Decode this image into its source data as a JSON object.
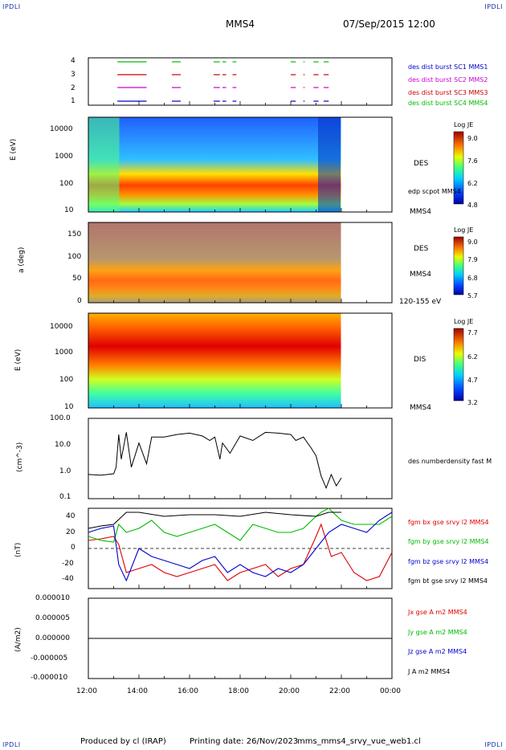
{
  "header": {
    "corner_tl": "IPDLI",
    "corner_tr": "IPDLI",
    "corner_bl": "IPDLI",
    "corner_br": "IPDLI",
    "spacecraft": "MMS4",
    "datetime": "07/Sep/2015 12:00"
  },
  "footer": {
    "produced_by": "Produced by cl (IRAP)",
    "printing_date": "Printing date: 26/Nov/2023",
    "script": "mms_mms4_srvy_vue_web1.cl"
  },
  "time_axis": {
    "ticks": [
      "12:00",
      "14:00",
      "16:00",
      "18:00",
      "20:00",
      "22:00",
      "00:00"
    ]
  },
  "panel1": {
    "yticks": [
      "1",
      "2",
      "3",
      "4"
    ],
    "legend": [
      {
        "text": "des dist burst SC1 MMS1",
        "color": "#0000cc"
      },
      {
        "text": "des dist burst SC2 MMS2",
        "color": "#cc00cc"
      },
      {
        "text": "des dist burst SC3 MMS3",
        "color": "#cc0000"
      },
      {
        "text": "des dist burst SC4 MMS4",
        "color": "#00bb00"
      }
    ],
    "intervals_hours": [
      [
        13.15,
        14.3
      ],
      [
        15.3,
        15.65
      ],
      [
        16.95,
        17.2
      ],
      [
        17.3,
        17.45
      ],
      [
        17.7,
        17.85
      ],
      [
        20.0,
        20.2
      ],
      [
        20.5,
        20.55
      ],
      [
        20.9,
        21.1
      ],
      [
        21.3,
        21.5
      ]
    ]
  },
  "panel2": {
    "ylabel": "E (eV)",
    "yticks": [
      "10",
      "100",
      "1000",
      "10000"
    ],
    "instrument": "DES",
    "overlay": "edp scpot MMS4",
    "sc": "MMS4",
    "colorbar": {
      "title": "Log JE",
      "ticks": [
        "9.0",
        "7.6",
        "6.2",
        "4.8"
      ]
    }
  },
  "panel3": {
    "ylabel": "a (deg)",
    "yticks": [
      "0",
      "50",
      "100",
      "150"
    ],
    "instrument": "DES",
    "sc": "MMS4",
    "energy_range": "120-155 eV",
    "colorbar": {
      "title": "Log JE",
      "ticks": [
        "9.0",
        "7.9",
        "6.8",
        "5.7"
      ]
    }
  },
  "panel4": {
    "ylabel": "E (eV)",
    "yticks": [
      "10",
      "100",
      "1000",
      "10000"
    ],
    "instrument": "DIS",
    "sc": "MMS4",
    "colorbar": {
      "title": "Log JE",
      "ticks": [
        "7.7",
        "6.2",
        "4.7",
        "3.2"
      ]
    }
  },
  "panel5": {
    "ylabel": "(cm^-3)",
    "yticks": [
      "0.1",
      "1.0",
      "10.0",
      "100.0"
    ],
    "legend": "des numberdensity fast M"
  },
  "panel6": {
    "ylabel": "(nT)",
    "yticks": [
      "-40",
      "-20",
      "0",
      "20",
      "40"
    ],
    "legend": [
      {
        "text": "fgm bx gse srvy l2 MMS4",
        "color": "#dd0000"
      },
      {
        "text": "fgm by gse srvy l2 MMS4",
        "color": "#00bb00"
      },
      {
        "text": "fgm bz gse srvy l2 MMS4",
        "color": "#0000cc"
      },
      {
        "text": "fgm bt gse srvy l2 MMS4",
        "color": "#000000"
      }
    ]
  },
  "panel7": {
    "ylabel": "(A/m2)",
    "yticks": [
      "-0.000010",
      "-0.000005",
      "0.000000",
      "0.000005",
      "0.000010"
    ],
    "legend": [
      {
        "text": "Jx gse A m2 MMS4",
        "color": "#dd0000"
      },
      {
        "text": "Jy gse A m2 MMS4",
        "color": "#00bb00"
      },
      {
        "text": "Jz gse A m2 MMS4",
        "color": "#0000cc"
      },
      {
        "text": "J A m2 MMS4",
        "color": "#000000"
      }
    ]
  },
  "chart_data": [
    {
      "type": "line",
      "title": "des numberdensity fast M",
      "ylabel": "(cm^-3)",
      "yscale": "log",
      "ylim": [
        0.1,
        100
      ],
      "x_hours": [
        12.0,
        12.5,
        13.0,
        13.1,
        13.2,
        13.3,
        13.5,
        13.7,
        14.0,
        14.3,
        14.5,
        15.0,
        15.5,
        16.0,
        16.5,
        16.8,
        17.0,
        17.2,
        17.3,
        17.6,
        18.0,
        18.5,
        19.0,
        19.5,
        20.0,
        20.2,
        20.5,
        20.8,
        21.0,
        21.2,
        21.4,
        21.6,
        21.8,
        22.0
      ],
      "values": [
        0.8,
        0.75,
        0.85,
        1.5,
        25,
        3,
        30,
        1.5,
        12,
        2,
        20,
        20,
        25,
        28,
        22,
        15,
        20,
        3,
        12,
        5,
        22,
        15,
        30,
        28,
        25,
        15,
        20,
        8,
        4,
        0.7,
        0.25,
        0.8,
        0.3,
        0.6
      ]
    },
    {
      "type": "line",
      "ylabel": "(nT)",
      "ylim": [
        -50,
        50
      ],
      "series": [
        {
          "name": "fgm bx gse srvy l2 MMS4",
          "x_hours": [
            12.0,
            12.5,
            13.0,
            13.2,
            13.5,
            14.0,
            14.5,
            15.0,
            15.5,
            16.0,
            16.5,
            17.0,
            17.5,
            18.0,
            18.5,
            19.0,
            19.5,
            20.0,
            20.5,
            21.0,
            21.2,
            21.4,
            21.6,
            22.0,
            22.5,
            23.0,
            23.5,
            24.0
          ],
          "values": [
            10,
            12,
            15,
            5,
            -30,
            -25,
            -20,
            -30,
            -35,
            -30,
            -25,
            -20,
            -40,
            -30,
            -25,
            -20,
            -35,
            -25,
            -20,
            15,
            30,
            10,
            -10,
            -5,
            -30,
            -40,
            -35,
            -5
          ]
        },
        {
          "name": "fgm by gse srvy l2 MMS4",
          "x_hours": [
            12.0,
            12.5,
            13.0,
            13.2,
            13.5,
            14.0,
            14.5,
            15.0,
            15.5,
            16.0,
            16.5,
            17.0,
            17.5,
            18.0,
            18.5,
            19.0,
            19.5,
            20.0,
            20.5,
            21.0,
            21.2,
            21.5,
            22.0,
            22.5,
            23.0,
            23.5,
            24.0
          ],
          "values": [
            15,
            10,
            8,
            30,
            20,
            25,
            35,
            20,
            15,
            20,
            25,
            30,
            20,
            10,
            30,
            25,
            20,
            20,
            25,
            40,
            45,
            50,
            35,
            30,
            30,
            30,
            40
          ]
        },
        {
          "name": "fgm bz gse srvy l2 MMS4",
          "x_hours": [
            12.0,
            12.5,
            13.0,
            13.2,
            13.5,
            14.0,
            14.5,
            15.0,
            15.5,
            16.0,
            16.5,
            17.0,
            17.5,
            18.0,
            18.5,
            19.0,
            19.5,
            20.0,
            20.5,
            21.0,
            21.5,
            22.0,
            22.5,
            23.0,
            23.5,
            24.0
          ],
          "values": [
            20,
            25,
            28,
            -20,
            -40,
            0,
            -10,
            -15,
            -20,
            -25,
            -15,
            -10,
            -30,
            -20,
            -30,
            -35,
            -25,
            -30,
            -20,
            0,
            20,
            30,
            25,
            20,
            35,
            45
          ]
        },
        {
          "name": "fgm bt gse srvy l2 MMS4",
          "x_hours": [
            12.0,
            12.5,
            13.0,
            13.5,
            14.0,
            15.0,
            16.0,
            17.0,
            18.0,
            19.0,
            20.0,
            21.0,
            21.5,
            22.0
          ],
          "values": [
            25,
            28,
            30,
            45,
            45,
            40,
            42,
            42,
            40,
            45,
            42,
            40,
            45,
            45
          ]
        }
      ]
    },
    {
      "type": "line",
      "ylabel": "(A/m2)",
      "ylim": [
        -1e-05,
        1e-05
      ],
      "series": [
        {
          "name": "J A m2 MMS4",
          "x_hours": [
            12.0,
            24.0
          ],
          "values": [
            0,
            0
          ]
        }
      ]
    }
  ]
}
